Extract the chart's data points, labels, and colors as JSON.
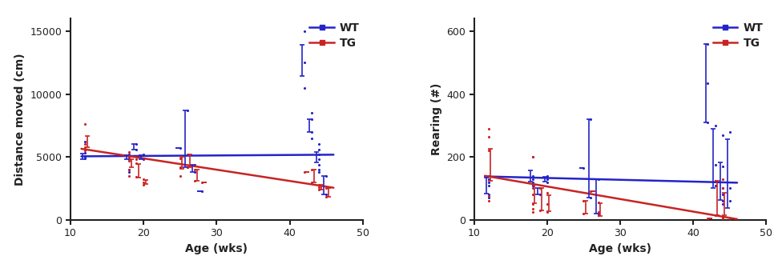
{
  "plot_A": {
    "ylabel": "Distance moved (cm)",
    "xlabel": "Age (wks)",
    "xlim": [
      10,
      50
    ],
    "ylim": [
      0,
      16000
    ],
    "yticks": [
      0,
      5000,
      10000,
      15000
    ],
    "xticks": [
      10,
      20,
      30,
      40,
      50
    ],
    "WT_scatter": {
      "x": [
        12,
        12,
        12,
        12,
        12,
        18,
        18,
        18,
        18,
        18,
        18,
        19,
        19,
        20,
        20,
        20,
        25,
        26,
        26,
        27,
        27,
        28,
        42,
        42,
        42,
        43,
        43,
        43,
        43,
        44,
        44,
        44,
        44,
        44,
        44,
        44,
        45,
        45
      ],
      "y": [
        4900,
        5000,
        5100,
        5300,
        6200,
        5200,
        5100,
        5000,
        4800,
        4000,
        3800,
        6000,
        5600,
        5200,
        4900,
        4800,
        5700,
        8700,
        4200,
        4400,
        3800,
        2300,
        15000,
        12500,
        10500,
        8500,
        8000,
        7000,
        6500,
        6000,
        5600,
        5200,
        4800,
        4400,
        4000,
        3800,
        3500,
        2000
      ],
      "color": "#2424c8",
      "size": 5
    },
    "TG_scatter": {
      "x": [
        12,
        12,
        12,
        12,
        18,
        18,
        18,
        18,
        18,
        19,
        19,
        19,
        20,
        20,
        20,
        25,
        25,
        25,
        26,
        26,
        27,
        27,
        28,
        42,
        43,
        43,
        44,
        44,
        44,
        45,
        45
      ],
      "y": [
        7600,
        6000,
        5800,
        5500,
        5400,
        5000,
        4700,
        4000,
        3500,
        4800,
        4500,
        3400,
        3200,
        3000,
        2800,
        4900,
        4200,
        3500,
        5200,
        4200,
        4000,
        3100,
        3000,
        3800,
        4000,
        3000,
        2800,
        2600,
        2400,
        2500,
        1800
      ],
      "color": "#c82424",
      "size": 5
    },
    "WT_line": {
      "x0": 11.5,
      "x1": 46.0,
      "y0": 5050,
      "y1": 5180,
      "color": "#2424c8",
      "lw": 1.8
    },
    "TG_line": {
      "x0": 11.5,
      "x1": 46.0,
      "y0": 5650,
      "y1": 2550,
      "color": "#c82424",
      "lw": 1.8
    },
    "group_x": [
      12,
      18,
      19,
      20,
      25,
      26,
      27,
      28,
      42,
      43,
      44,
      45
    ],
    "WT_mean": [
      5060,
      4983,
      5800,
      4967,
      5700,
      6450,
      4100,
      2300,
      12667,
      7500,
      4971,
      2750
    ],
    "WT_sem": [
      220,
      180,
      200,
      160,
      0,
      2250,
      300,
      0,
      1250,
      500,
      430,
      750
    ],
    "TG_mean": [
      6225,
      4520,
      3900,
      3000,
      4533,
      4700,
      3550,
      3000,
      3800,
      3500,
      2600,
      2150
    ],
    "TG_sem": [
      450,
      320,
      550,
      180,
      450,
      500,
      450,
      0,
      0,
      500,
      180,
      350
    ]
  },
  "plot_B": {
    "ylabel": "Rearing (#)",
    "xlabel": "Age (wks)",
    "xlim": [
      10,
      50
    ],
    "ylim": [
      0,
      640
    ],
    "yticks": [
      0,
      200,
      400,
      600
    ],
    "xticks": [
      10,
      20,
      30,
      40,
      50
    ],
    "WT_scatter": {
      "x": [
        12,
        12,
        12,
        12,
        12,
        12,
        18,
        18,
        18,
        18,
        18,
        19,
        19,
        20,
        20,
        20,
        25,
        26,
        26,
        27,
        27,
        42,
        42,
        42,
        43,
        43,
        43,
        44,
        44,
        44,
        44,
        44,
        44,
        45,
        45,
        45
      ],
      "y": [
        140,
        130,
        120,
        110,
        80,
        70,
        200,
        140,
        130,
        120,
        110,
        100,
        80,
        140,
        130,
        120,
        165,
        320,
        70,
        20,
        130,
        560,
        435,
        310,
        300,
        175,
        110,
        100,
        80,
        170,
        270,
        60,
        50,
        100,
        280,
        60
      ],
      "color": "#2424c8",
      "size": 5
    },
    "TG_scatter": {
      "x": [
        12,
        12,
        12,
        12,
        12,
        12,
        18,
        18,
        18,
        18,
        18,
        18,
        19,
        19,
        20,
        20,
        20,
        25,
        25,
        26,
        27,
        27,
        27,
        42,
        43,
        43,
        44,
        44,
        44,
        44,
        44,
        45
      ],
      "y": [
        290,
        265,
        220,
        140,
        75,
        60,
        200,
        100,
        80,
        50,
        35,
        25,
        100,
        30,
        85,
        50,
        25,
        60,
        20,
        90,
        55,
        25,
        15,
        5,
        125,
        15,
        130,
        100,
        10,
        5,
        5,
        5
      ],
      "color": "#c82424",
      "size": 5
    },
    "WT_line": {
      "x0": 11.5,
      "x1": 46.0,
      "y0": 138,
      "y1": 118,
      "color": "#2424c8",
      "lw": 1.8
    },
    "TG_line": {
      "x0": 11.5,
      "x1": 46.0,
      "y0": 140,
      "y1": 2,
      "color": "#c82424",
      "lw": 1.8
    },
    "group_x": [
      12,
      18,
      19,
      20,
      25,
      26,
      27,
      42,
      43,
      44,
      45
    ],
    "WT_mean": [
      108,
      140,
      90,
      130,
      165,
      195,
      75,
      435,
      195,
      122,
      147
    ],
    "WT_sem": [
      25,
      18,
      10,
      8,
      0,
      125,
      55,
      125,
      95,
      60,
      110
    ],
    "TG_mean": [
      175,
      82,
      65,
      53,
      40,
      90,
      32,
      5,
      70,
      50,
      5
    ],
    "TG_sem": [
      50,
      30,
      35,
      25,
      20,
      0,
      20,
      0,
      55,
      35,
      0
    ]
  },
  "legend": {
    "WT_label": "WT",
    "TG_label": "TG",
    "WT_color": "#2424c8",
    "TG_color": "#c82424"
  },
  "bg_color": "#ffffff",
  "tick_color": "#222222",
  "font_size_label": 10,
  "font_size_tick": 9,
  "font_size_legend": 10
}
